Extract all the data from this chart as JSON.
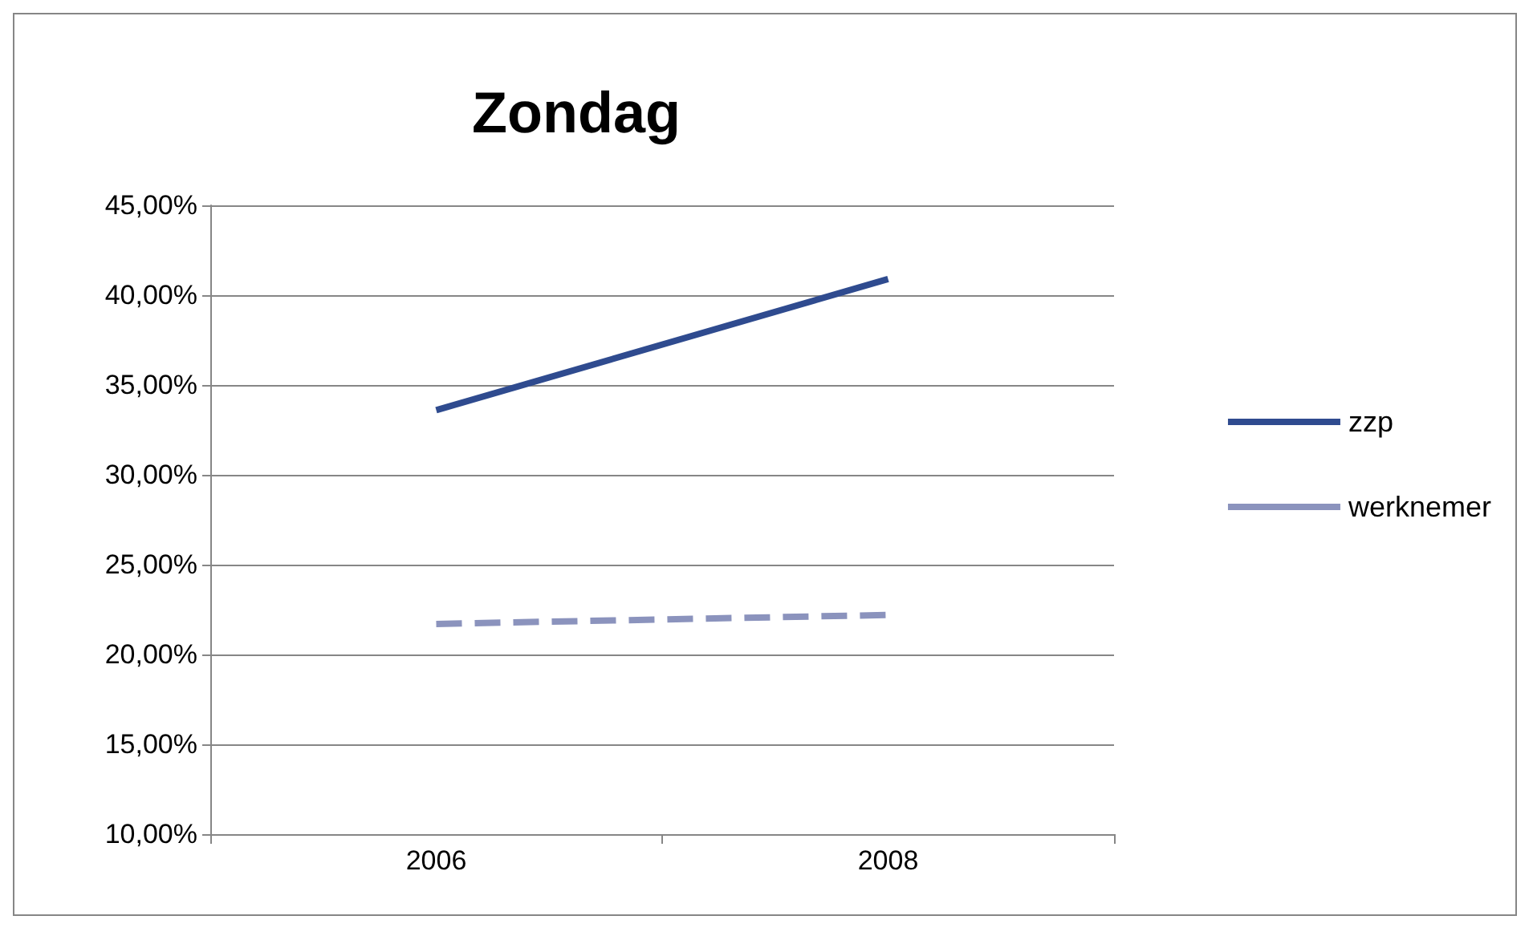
{
  "chart_data": {
    "type": "line",
    "title": "Zondag",
    "categories": [
      "2006",
      "2008"
    ],
    "series": [
      {
        "name": "zzp",
        "color": "#2f4b8f",
        "values": [
          33.6,
          40.9
        ],
        "line_style": "solid"
      },
      {
        "name": "werknemer",
        "color": "#8b93bd",
        "values": [
          21.7,
          22.2
        ],
        "line_style": "dashed"
      }
    ],
    "ylim": [
      10,
      45
    ],
    "yticks": [
      {
        "value": 10,
        "label": "10,00%"
      },
      {
        "value": 15,
        "label": "15,00%"
      },
      {
        "value": 20,
        "label": "20,00%"
      },
      {
        "value": 25,
        "label": "25,00%"
      },
      {
        "value": 30,
        "label": "30,00%"
      },
      {
        "value": 35,
        "label": "35,00%"
      },
      {
        "value": 40,
        "label": "40,00%"
      },
      {
        "value": 45,
        "label": "45,00%"
      }
    ],
    "grid": "y",
    "legend": "right",
    "marker": "none"
  }
}
